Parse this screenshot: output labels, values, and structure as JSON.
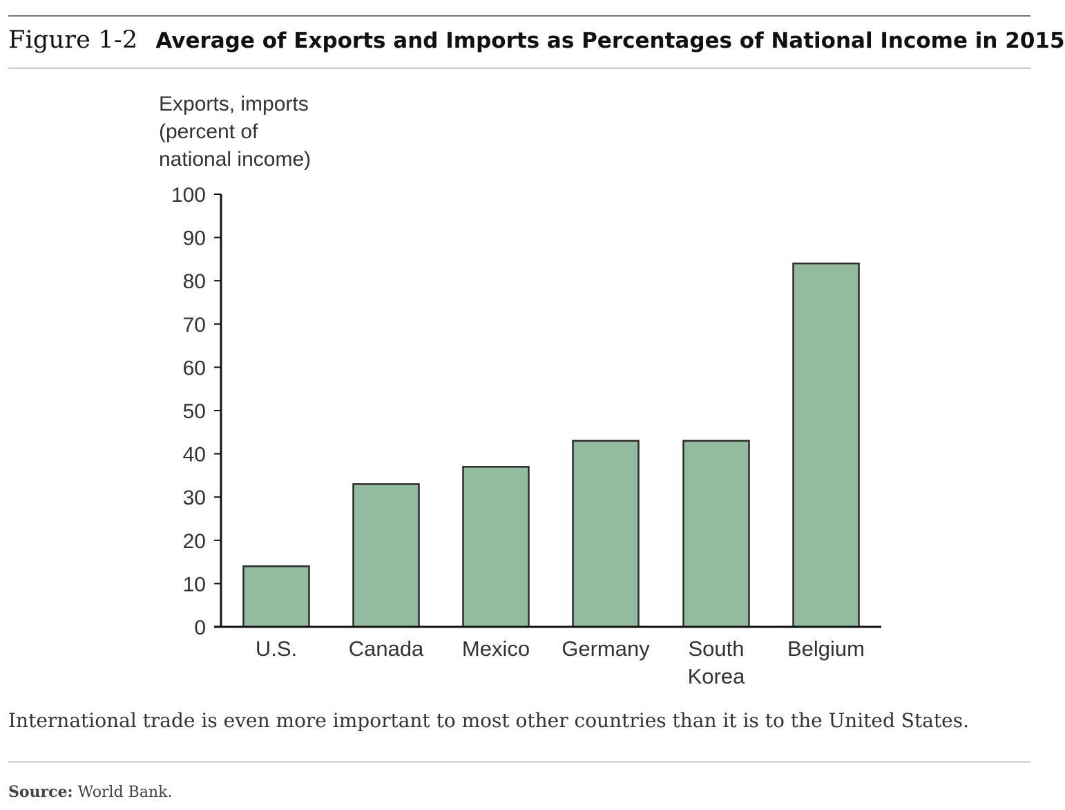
{
  "figure": {
    "label": "Figure 1-2",
    "title": "Average of Exports and Imports as Percentages of National Income in 2015"
  },
  "chart_data": {
    "type": "bar",
    "ylabel_lines": [
      "Exports, imports",
      "(percent of",
      "national income)"
    ],
    "categories": [
      [
        "U.S."
      ],
      [
        "Canada"
      ],
      [
        "Mexico"
      ],
      [
        "Germany"
      ],
      [
        "South",
        "Korea"
      ],
      [
        "Belgium"
      ]
    ],
    "values": [
      14,
      33,
      37,
      43,
      43,
      84
    ],
    "yticks": [
      "0",
      "10",
      "20",
      "30",
      "40",
      "50",
      "60",
      "70",
      "80",
      "90",
      "100"
    ],
    "ylim": [
      0,
      100
    ],
    "grid": false,
    "bar_color": "#93bb9f",
    "bar_edge_color": "#2b2b2b"
  },
  "caption": "International trade is even more important to most other countries than it is to the United States.",
  "source": {
    "label": "Source:",
    "text": "World Bank."
  }
}
